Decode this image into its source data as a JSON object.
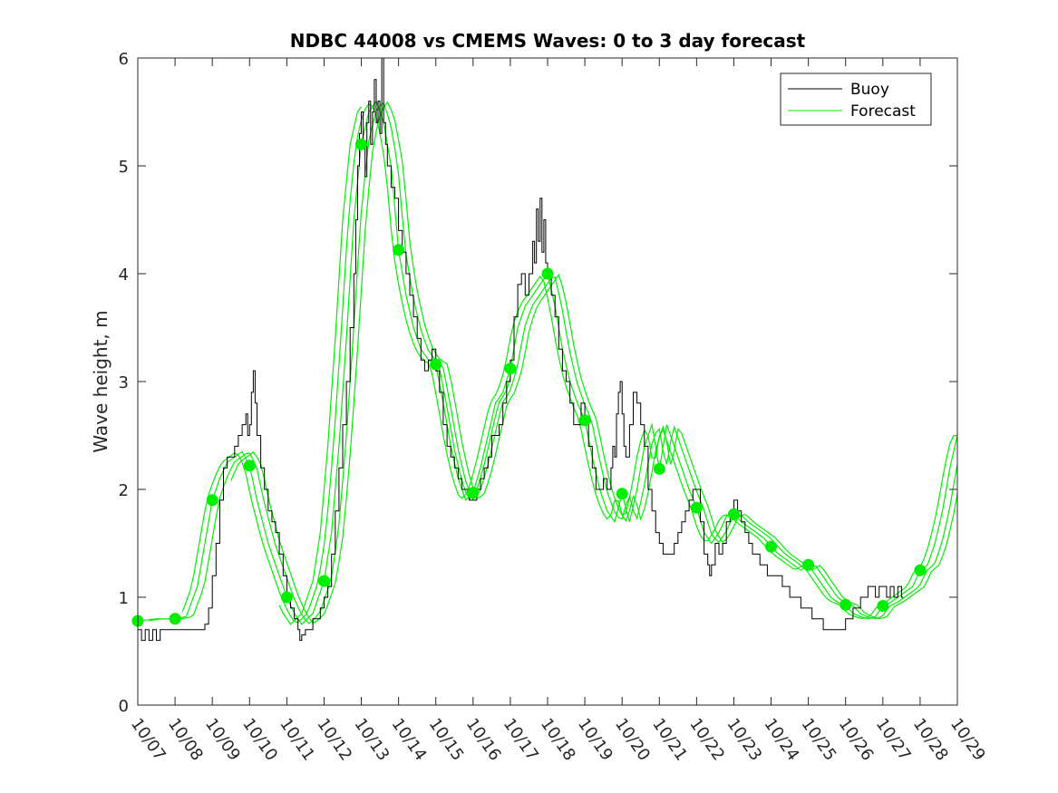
{
  "chart_data": {
    "type": "line",
    "title": "NDBC 44008 vs CMEMS Waves: 0 to 3 day forecast",
    "xlabel": "",
    "ylabel": "Wave height, m",
    "xlim": [
      0,
      22
    ],
    "ylim": [
      0,
      6
    ],
    "x_tick_labels": [
      "10/07",
      "10/08",
      "10/09",
      "10/10",
      "10/11",
      "10/12",
      "10/13",
      "10/14",
      "10/15",
      "10/16",
      "10/17",
      "10/18",
      "10/19",
      "10/20",
      "10/21",
      "10/22",
      "10/23",
      "10/24",
      "10/25",
      "10/26",
      "10/27",
      "10/28",
      "10/29"
    ],
    "y_ticks": [
      0,
      1,
      2,
      3,
      4,
      5,
      6
    ],
    "y_tick_labels": [
      "0",
      "1",
      "2",
      "3",
      "4",
      "5",
      "6"
    ],
    "grid": false,
    "legend": {
      "location": "top-right",
      "entries": [
        "Buoy",
        "Forecast"
      ]
    },
    "colors": {
      "buoy": "#000000",
      "forecast": "#00ee00"
    },
    "buoy": {
      "name": "Buoy",
      "points": [
        [
          0,
          0.7
        ],
        [
          0.1,
          0.6
        ],
        [
          0.2,
          0.7
        ],
        [
          0.3,
          0.6
        ],
        [
          0.4,
          0.7
        ],
        [
          0.5,
          0.6
        ],
        [
          0.6,
          0.7
        ],
        [
          0.8,
          0.7
        ],
        [
          1.0,
          0.7
        ],
        [
          1.3,
          0.7
        ],
        [
          1.6,
          0.7
        ],
        [
          1.8,
          0.75
        ],
        [
          1.9,
          0.9
        ],
        [
          2.0,
          1.2
        ],
        [
          2.1,
          1.5
        ],
        [
          2.2,
          1.9
        ],
        [
          2.3,
          2.2
        ],
        [
          2.4,
          2.3
        ],
        [
          2.5,
          2.3
        ],
        [
          2.6,
          2.4
        ],
        [
          2.7,
          2.5
        ],
        [
          2.8,
          2.6
        ],
        [
          2.9,
          2.7
        ],
        [
          2.95,
          2.5
        ],
        [
          3.0,
          2.6
        ],
        [
          3.05,
          2.9
        ],
        [
          3.1,
          3.1
        ],
        [
          3.15,
          2.8
        ],
        [
          3.2,
          2.5
        ],
        [
          3.3,
          2.2
        ],
        [
          3.4,
          2.0
        ],
        [
          3.5,
          1.8
        ],
        [
          3.6,
          1.7
        ],
        [
          3.7,
          1.6
        ],
        [
          3.8,
          1.4
        ],
        [
          3.9,
          1.2
        ],
        [
          4.0,
          1.0
        ],
        [
          4.1,
          0.9
        ],
        [
          4.2,
          0.8
        ],
        [
          4.3,
          0.7
        ],
        [
          4.35,
          0.6
        ],
        [
          4.4,
          0.65
        ],
        [
          4.5,
          0.7
        ],
        [
          4.7,
          0.8
        ],
        [
          4.9,
          0.9
        ],
        [
          5.0,
          1.0
        ],
        [
          5.1,
          1.1
        ],
        [
          5.2,
          1.4
        ],
        [
          5.3,
          1.8
        ],
        [
          5.4,
          2.2
        ],
        [
          5.5,
          2.6
        ],
        [
          5.6,
          3.0
        ],
        [
          5.7,
          3.5
        ],
        [
          5.8,
          4.0
        ],
        [
          5.85,
          4.5
        ],
        [
          5.9,
          5.0
        ],
        [
          5.95,
          5.3
        ],
        [
          6.0,
          5.5
        ],
        [
          6.05,
          5.2
        ],
        [
          6.1,
          4.9
        ],
        [
          6.15,
          5.4
        ],
        [
          6.2,
          5.6
        ],
        [
          6.25,
          5.2
        ],
        [
          6.3,
          5.5
        ],
        [
          6.35,
          5.8
        ],
        [
          6.4,
          5.4
        ],
        [
          6.45,
          5.6
        ],
        [
          6.5,
          5.3
        ],
        [
          6.55,
          6.0
        ],
        [
          6.6,
          5.4
        ],
        [
          6.65,
          5.2
        ],
        [
          6.7,
          5.0
        ],
        [
          6.8,
          4.8
        ],
        [
          6.9,
          4.7
        ],
        [
          7.0,
          4.4
        ],
        [
          7.1,
          4.2
        ],
        [
          7.2,
          4.0
        ],
        [
          7.3,
          3.8
        ],
        [
          7.4,
          3.6
        ],
        [
          7.5,
          3.4
        ],
        [
          7.6,
          3.2
        ],
        [
          7.7,
          3.1
        ],
        [
          7.8,
          3.2
        ],
        [
          7.9,
          3.3
        ],
        [
          8.0,
          3.1
        ],
        [
          8.1,
          2.9
        ],
        [
          8.2,
          2.6
        ],
        [
          8.3,
          2.4
        ],
        [
          8.4,
          2.3
        ],
        [
          8.5,
          2.2
        ],
        [
          8.6,
          2.1
        ],
        [
          8.7,
          2.0
        ],
        [
          8.8,
          2.0
        ],
        [
          8.9,
          1.9
        ],
        [
          9.0,
          1.9
        ],
        [
          9.1,
          2.0
        ],
        [
          9.2,
          2.1
        ],
        [
          9.3,
          2.2
        ],
        [
          9.4,
          2.3
        ],
        [
          9.5,
          2.5
        ],
        [
          9.6,
          2.5
        ],
        [
          9.7,
          2.6
        ],
        [
          9.8,
          2.8
        ],
        [
          9.9,
          3.0
        ],
        [
          10.0,
          3.2
        ],
        [
          10.1,
          3.6
        ],
        [
          10.2,
          3.9
        ],
        [
          10.3,
          4.0
        ],
        [
          10.4,
          3.8
        ],
        [
          10.5,
          4.0
        ],
        [
          10.6,
          4.3
        ],
        [
          10.65,
          4.1
        ],
        [
          10.7,
          4.6
        ],
        [
          10.75,
          4.3
        ],
        [
          10.8,
          4.7
        ],
        [
          10.85,
          4.2
        ],
        [
          10.9,
          4.5
        ],
        [
          10.95,
          4.1
        ],
        [
          11.0,
          4.0
        ],
        [
          11.1,
          3.8
        ],
        [
          11.2,
          3.6
        ],
        [
          11.3,
          3.3
        ],
        [
          11.4,
          3.1
        ],
        [
          11.5,
          3.0
        ],
        [
          11.6,
          2.8
        ],
        [
          11.7,
          2.6
        ],
        [
          11.8,
          2.6
        ],
        [
          11.9,
          2.8
        ],
        [
          12.0,
          2.6
        ],
        [
          12.1,
          2.4
        ],
        [
          12.2,
          2.2
        ],
        [
          12.3,
          2.0
        ],
        [
          12.4,
          2.0
        ],
        [
          12.5,
          2.1
        ],
        [
          12.6,
          2.0
        ],
        [
          12.7,
          2.2
        ],
        [
          12.75,
          2.4
        ],
        [
          12.8,
          2.3
        ],
        [
          12.85,
          2.7
        ],
        [
          12.9,
          2.9
        ],
        [
          12.95,
          3.0
        ],
        [
          13.0,
          2.7
        ],
        [
          13.05,
          2.4
        ],
        [
          13.1,
          2.3
        ],
        [
          13.2,
          2.6
        ],
        [
          13.3,
          2.9
        ],
        [
          13.4,
          2.8
        ],
        [
          13.5,
          2.6
        ],
        [
          13.6,
          2.4
        ],
        [
          13.7,
          2.0
        ],
        [
          13.8,
          1.8
        ],
        [
          13.9,
          1.6
        ],
        [
          14.0,
          1.5
        ],
        [
          14.1,
          1.4
        ],
        [
          14.2,
          1.4
        ],
        [
          14.3,
          1.4
        ],
        [
          14.4,
          1.5
        ],
        [
          14.5,
          1.6
        ],
        [
          14.6,
          1.7
        ],
        [
          14.7,
          1.8
        ],
        [
          14.8,
          1.9
        ],
        [
          14.9,
          2.0
        ],
        [
          15.0,
          2.0
        ],
        [
          15.1,
          1.7
        ],
        [
          15.2,
          1.4
        ],
        [
          15.3,
          1.3
        ],
        [
          15.35,
          1.2
        ],
        [
          15.4,
          1.3
        ],
        [
          15.5,
          1.5
        ],
        [
          15.6,
          1.4
        ],
        [
          15.7,
          1.5
        ],
        [
          15.8,
          1.7
        ],
        [
          15.9,
          1.8
        ],
        [
          16.0,
          1.9
        ],
        [
          16.1,
          1.8
        ],
        [
          16.2,
          1.7
        ],
        [
          16.3,
          1.6
        ],
        [
          16.4,
          1.5
        ],
        [
          16.5,
          1.4
        ],
        [
          16.6,
          1.4
        ],
        [
          16.7,
          1.3
        ],
        [
          16.8,
          1.3
        ],
        [
          16.9,
          1.2
        ],
        [
          17.0,
          1.2
        ],
        [
          17.1,
          1.2
        ],
        [
          17.2,
          1.2
        ],
        [
          17.3,
          1.1
        ],
        [
          17.4,
          1.1
        ],
        [
          17.5,
          1.0
        ],
        [
          17.6,
          1.0
        ],
        [
          17.7,
          1.0
        ],
        [
          17.8,
          0.9
        ],
        [
          17.9,
          0.9
        ],
        [
          18.0,
          0.9
        ],
        [
          18.1,
          0.8
        ],
        [
          18.2,
          0.8
        ],
        [
          18.3,
          0.8
        ],
        [
          18.4,
          0.7
        ],
        [
          18.6,
          0.7
        ],
        [
          18.8,
          0.7
        ],
        [
          18.9,
          0.7
        ],
        [
          19.0,
          0.8
        ],
        [
          19.1,
          0.8
        ],
        [
          19.2,
          0.9
        ],
        [
          19.3,
          0.9
        ],
        [
          19.4,
          1.0
        ],
        [
          19.5,
          1.0
        ],
        [
          19.6,
          1.1
        ],
        [
          19.7,
          1.1
        ],
        [
          19.8,
          1.0
        ],
        [
          19.9,
          1.1
        ],
        [
          20.0,
          1.1
        ],
        [
          20.1,
          1.0
        ],
        [
          20.2,
          1.1
        ],
        [
          20.3,
          1.0
        ],
        [
          20.4,
          1.1
        ],
        [
          20.5,
          1.0
        ],
        [
          20.55,
          1.0
        ]
      ]
    },
    "forecast": {
      "name": "Forecast",
      "base_points": [
        [
          0,
          0.78
        ],
        [
          0.5,
          0.8
        ],
        [
          1.0,
          0.8
        ],
        [
          1.3,
          0.82
        ],
        [
          1.6,
          1.1
        ],
        [
          1.8,
          1.5
        ],
        [
          2.0,
          1.9
        ],
        [
          2.2,
          2.1
        ],
        [
          2.4,
          2.25
        ],
        [
          2.6,
          2.3
        ],
        [
          2.8,
          2.35
        ],
        [
          3.0,
          2.22
        ],
        [
          3.2,
          1.9
        ],
        [
          3.5,
          1.5
        ],
        [
          3.8,
          1.2
        ],
        [
          4.0,
          1.0
        ],
        [
          4.2,
          0.85
        ],
        [
          4.4,
          0.75
        ],
        [
          4.7,
          0.85
        ],
        [
          5.0,
          1.15
        ],
        [
          5.2,
          1.6
        ],
        [
          5.4,
          2.4
        ],
        [
          5.6,
          3.4
        ],
        [
          5.8,
          4.5
        ],
        [
          6.0,
          5.2
        ],
        [
          6.2,
          5.5
        ],
        [
          6.4,
          5.6
        ],
        [
          6.6,
          5.4
        ],
        [
          6.8,
          5.0
        ],
        [
          7.0,
          4.22
        ],
        [
          7.2,
          3.8
        ],
        [
          7.4,
          3.5
        ],
        [
          7.6,
          3.3
        ],
        [
          7.8,
          3.2
        ],
        [
          8.0,
          3.16
        ],
        [
          8.2,
          2.8
        ],
        [
          8.4,
          2.4
        ],
        [
          8.6,
          2.1
        ],
        [
          8.8,
          1.9
        ],
        [
          9.0,
          1.97
        ],
        [
          9.2,
          2.2
        ],
        [
          9.4,
          2.5
        ],
        [
          9.6,
          2.8
        ],
        [
          9.8,
          2.9
        ],
        [
          10.0,
          3.12
        ],
        [
          10.2,
          3.5
        ],
        [
          10.4,
          3.7
        ],
        [
          10.6,
          3.8
        ],
        [
          10.8,
          3.9
        ],
        [
          11.0,
          4.0
        ],
        [
          11.2,
          3.7
        ],
        [
          11.4,
          3.3
        ],
        [
          11.6,
          3.0
        ],
        [
          11.8,
          2.8
        ],
        [
          12.0,
          2.64
        ],
        [
          12.2,
          2.3
        ],
        [
          12.4,
          2.0
        ],
        [
          12.6,
          1.8
        ],
        [
          12.8,
          1.7
        ],
        [
          13.0,
          1.96
        ],
        [
          13.2,
          1.7
        ],
        [
          13.4,
          2.0
        ],
        [
          13.6,
          2.4
        ],
        [
          13.8,
          2.6
        ],
        [
          14.0,
          2.19
        ],
        [
          14.2,
          2.6
        ],
        [
          14.4,
          2.4
        ],
        [
          14.6,
          2.2
        ],
        [
          14.8,
          2.0
        ],
        [
          15.0,
          1.83
        ],
        [
          15.2,
          1.6
        ],
        [
          15.4,
          1.5
        ],
        [
          15.6,
          1.6
        ],
        [
          15.8,
          1.75
        ],
        [
          16.0,
          1.77
        ],
        [
          16.2,
          1.7
        ],
        [
          16.4,
          1.65
        ],
        [
          16.6,
          1.6
        ],
        [
          16.8,
          1.55
        ],
        [
          17.0,
          1.47
        ],
        [
          17.2,
          1.4
        ],
        [
          17.4,
          1.35
        ],
        [
          17.6,
          1.3
        ],
        [
          17.8,
          1.25
        ],
        [
          18.0,
          1.3
        ],
        [
          18.2,
          1.2
        ],
        [
          18.4,
          1.1
        ],
        [
          18.6,
          1.0
        ],
        [
          18.8,
          0.95
        ],
        [
          19.0,
          0.93
        ],
        [
          19.2,
          0.85
        ],
        [
          19.4,
          0.82
        ],
        [
          19.6,
          0.8
        ],
        [
          19.8,
          0.82
        ],
        [
          20.0,
          0.92
        ],
        [
          20.2,
          0.95
        ],
        [
          20.4,
          1.0
        ],
        [
          20.6,
          1.05
        ],
        [
          20.8,
          1.1
        ],
        [
          21.0,
          1.25
        ],
        [
          21.2,
          1.3
        ],
        [
          21.4,
          1.5
        ],
        [
          21.6,
          1.8
        ],
        [
          21.8,
          2.2
        ],
        [
          22.0,
          2.5
        ]
      ],
      "markers": [
        [
          0,
          0.78
        ],
        [
          1,
          0.8
        ],
        [
          2,
          1.9
        ],
        [
          3,
          2.22
        ],
        [
          4,
          1.0
        ],
        [
          5,
          1.15
        ],
        [
          6,
          5.2
        ],
        [
          7,
          4.22
        ],
        [
          8,
          3.16
        ],
        [
          9,
          1.97
        ],
        [
          10,
          3.12
        ],
        [
          11,
          4.0
        ],
        [
          12,
          2.64
        ],
        [
          13,
          1.96
        ],
        [
          14,
          2.19
        ],
        [
          15,
          1.83
        ],
        [
          16,
          1.77
        ],
        [
          17,
          1.47
        ],
        [
          18,
          1.3
        ],
        [
          19,
          0.93
        ],
        [
          20,
          0.92
        ],
        [
          21,
          1.25
        ]
      ],
      "runs": [
        {
          "offset": 0,
          "start": 0,
          "end": 22
        },
        {
          "offset": 0.18,
          "start": 0.3,
          "end": 22
        },
        {
          "offset": -0.15,
          "start": 1.2,
          "end": 22
        },
        {
          "offset": 0.32,
          "start": 2.5,
          "end": 22
        },
        {
          "offset": -0.3,
          "start": 3.8,
          "end": 6.0
        },
        {
          "offset": 0.08,
          "start": 8.0,
          "end": 10.0
        }
      ]
    }
  }
}
